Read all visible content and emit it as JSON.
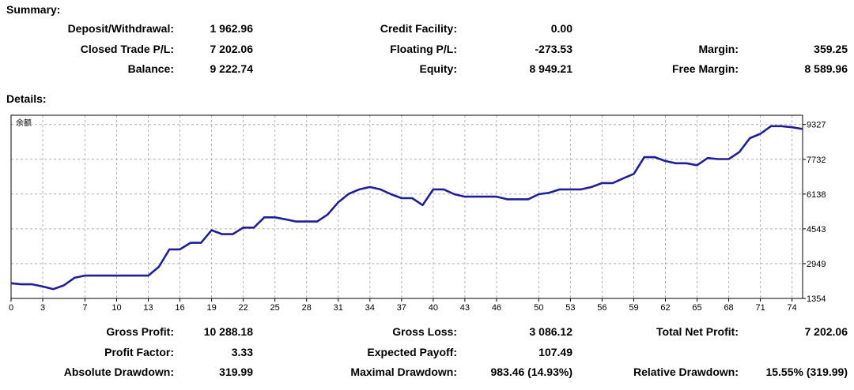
{
  "summary": {
    "heading": "Summary:",
    "rows": [
      [
        {
          "label": "Deposit/Withdrawal:",
          "value": "1 962.96"
        },
        {
          "label": "Credit Facility:",
          "value": "0.00"
        },
        {
          "label": "",
          "value": ""
        }
      ],
      [
        {
          "label": "Closed Trade P/L:",
          "value": "7 202.06"
        },
        {
          "label": "Floating P/L:",
          "value": "-273.53"
        },
        {
          "label": "Margin:",
          "value": "359.25"
        }
      ],
      [
        {
          "label": "Balance:",
          "value": "9 222.74"
        },
        {
          "label": "Equity:",
          "value": "8 949.21"
        },
        {
          "label": "Free Margin:",
          "value": "8 589.96"
        }
      ]
    ]
  },
  "details": {
    "heading": "Details:",
    "rows": [
      [
        {
          "label": "Gross Profit:",
          "value": "10 288.18"
        },
        {
          "label": "Gross Loss:",
          "value": "3 086.12"
        },
        {
          "label": "Total Net Profit:",
          "value": "7 202.06"
        }
      ],
      [
        {
          "label": "Profit Factor:",
          "value": "3.33"
        },
        {
          "label": "Expected Payoff:",
          "value": "107.49"
        },
        {
          "label": "",
          "value": ""
        }
      ],
      [
        {
          "label": "Absolute Drawdown:",
          "value": "319.99"
        },
        {
          "label": "Maximal Drawdown:",
          "value": "983.46 (14.93%)"
        },
        {
          "label": "Relative Drawdown:",
          "value": "15.55% (319.99)"
        }
      ]
    ]
  },
  "chart_data": {
    "type": "line",
    "title": "余额",
    "xlabel": "",
    "ylabel": "",
    "grid": true,
    "line_color": "#1f1f9e",
    "x_ticks": [
      0,
      3,
      7,
      10,
      13,
      16,
      19,
      22,
      25,
      28,
      31,
      34,
      37,
      40,
      43,
      46,
      50,
      53,
      56,
      59,
      62,
      65,
      68,
      71,
      74
    ],
    "y_ticks": [
      1354,
      2949,
      4543,
      6138,
      7732,
      9327
    ],
    "xlim": [
      0,
      75
    ],
    "ylim": [
      1354,
      9750
    ],
    "series": [
      {
        "x": [
          0,
          1,
          2,
          3,
          4,
          5,
          6,
          7,
          8,
          9,
          10,
          11,
          12,
          13,
          14,
          15,
          16,
          17,
          18,
          19,
          20,
          21,
          22,
          23,
          24,
          25,
          26,
          27,
          28,
          29,
          30,
          31,
          32,
          33,
          34,
          35,
          36,
          37,
          38,
          39,
          40,
          41,
          42,
          43,
          44,
          45,
          46,
          47,
          48,
          49,
          50,
          51,
          52,
          53,
          54,
          55,
          56,
          57,
          58,
          59,
          60,
          61,
          62,
          63,
          64,
          65,
          66,
          67,
          68,
          69,
          70,
          71,
          72,
          73,
          74,
          75
        ],
        "y": [
          2050,
          2000,
          2000,
          1900,
          1780,
          1950,
          2300,
          2400,
          2400,
          2400,
          2400,
          2400,
          2400,
          2400,
          2800,
          3600,
          3600,
          3900,
          3900,
          4480,
          4300,
          4300,
          4600,
          4600,
          5070,
          5070,
          4980,
          4880,
          4880,
          4880,
          5200,
          5760,
          6150,
          6350,
          6460,
          6350,
          6130,
          5950,
          5950,
          5630,
          6350,
          6350,
          6130,
          6020,
          6020,
          6020,
          6020,
          5900,
          5900,
          5900,
          6130,
          6200,
          6350,
          6350,
          6350,
          6460,
          6640,
          6640,
          6860,
          7060,
          7830,
          7830,
          7650,
          7550,
          7550,
          7460,
          7790,
          7740,
          7740,
          8060,
          8700,
          8900,
          9250,
          9250,
          9200,
          9120
        ]
      }
    ]
  }
}
